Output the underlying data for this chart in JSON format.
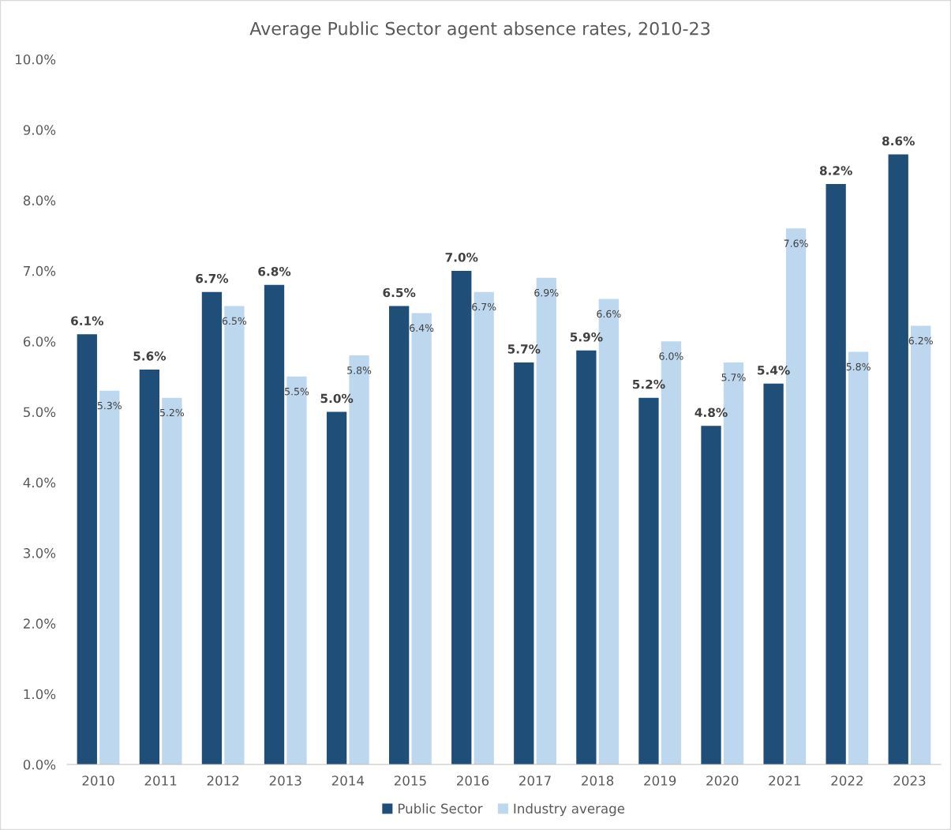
{
  "chart_data": {
    "type": "bar",
    "title": "Average Public Sector agent absence rates, 2010-23",
    "categories": [
      "2010",
      "2011",
      "2012",
      "2013",
      "2014",
      "2015",
      "2016",
      "2017",
      "2018",
      "2019",
      "2020",
      "2021",
      "2022",
      "2023"
    ],
    "series": [
      {
        "name": "Public Sector",
        "color": "#1f4e79",
        "values": [
          6.1,
          5.6,
          6.7,
          6.8,
          5.0,
          6.5,
          7.0,
          5.7,
          5.87,
          5.2,
          4.8,
          5.4,
          8.23,
          8.65
        ],
        "value_labels": [
          "6.1%",
          "5.6%",
          "6.7%",
          "6.8%",
          "5.0%",
          "6.5%",
          "7.0%",
          "5.7%",
          "5.9%",
          "5.2%",
          "4.8%",
          "5.4%",
          "8.2%",
          "8.6%"
        ]
      },
      {
        "name": "Industry average",
        "color": "#bdd7ee",
        "values": [
          5.3,
          5.2,
          6.5,
          5.5,
          5.8,
          6.4,
          6.7,
          6.9,
          6.6,
          6.0,
          5.7,
          7.6,
          5.85,
          6.22
        ],
        "value_labels": [
          "5.3%",
          "5.2%",
          "6.5%",
          "5.5%",
          "5.8%",
          "6.4%",
          "6.7%",
          "6.9%",
          "6.6%",
          "6.0%",
          "5.7%",
          "7.6%",
          "5.8%",
          "6.2%"
        ]
      }
    ],
    "ylim": [
      0,
      10
    ],
    "yticks": [
      {
        "value": 0,
        "label": "0.0%"
      },
      {
        "value": 1,
        "label": "1.0%"
      },
      {
        "value": 2,
        "label": "2.0%"
      },
      {
        "value": 3,
        "label": "3.0%"
      },
      {
        "value": 4,
        "label": "4.0%"
      },
      {
        "value": 5,
        "label": "5.0%"
      },
      {
        "value": 6,
        "label": "6.0%"
      },
      {
        "value": 7,
        "label": "7.0%"
      },
      {
        "value": 8,
        "label": "8.0%"
      },
      {
        "value": 9,
        "label": "9.0%"
      },
      {
        "value": 10,
        "label": "10.0%"
      }
    ],
    "legend": "bottom"
  }
}
